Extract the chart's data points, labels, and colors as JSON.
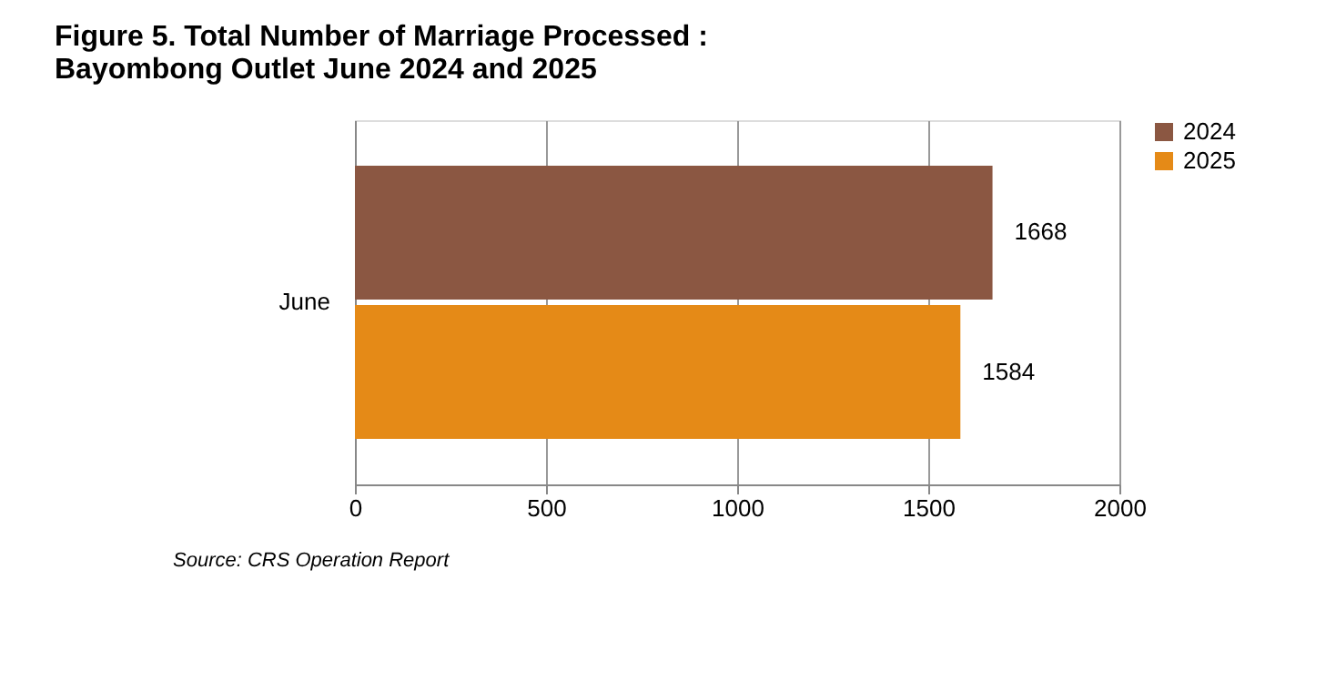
{
  "chart_data": {
    "type": "bar",
    "orientation": "horizontal",
    "title": "Figure 5. Total Number of Marriage Processed :\nBayombong Outlet June 2024 and 2025",
    "categories": [
      "June"
    ],
    "series": [
      {
        "name": "2025",
        "color": "#e58a17",
        "values": [
          1584
        ]
      },
      {
        "name": "2024",
        "color": "#8b5742",
        "values": [
          1668
        ]
      }
    ],
    "xlim": [
      0,
      2000
    ],
    "xticks": [
      0,
      500,
      1000,
      1500,
      2000
    ],
    "grid": "x",
    "legend": "right",
    "data_labels": true,
    "annotations": [
      "Source: CRS Operation Report"
    ]
  }
}
